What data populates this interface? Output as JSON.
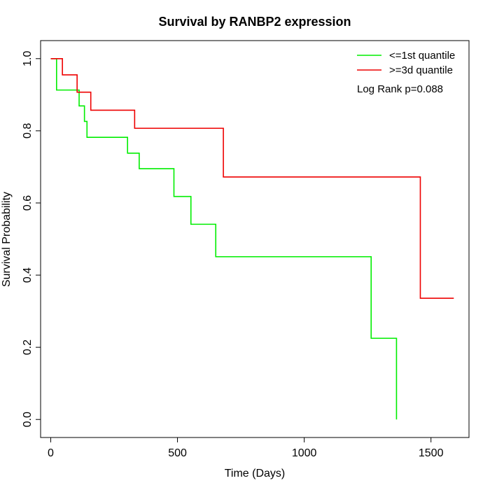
{
  "chart_data": {
    "type": "line",
    "title": "Survival by RANBP2 expression",
    "xlabel": "Time (Days)",
    "ylabel": "Survival Probability",
    "xlim": [
      -40,
      1650
    ],
    "ylim": [
      -0.05,
      1.05
    ],
    "xticks": [
      0,
      500,
      1000,
      1500
    ],
    "yticks": [
      0.0,
      0.2,
      0.4,
      0.6,
      0.8,
      1.0
    ],
    "xtick_labels": [
      "0",
      "500",
      "1000",
      "1500"
    ],
    "ytick_labels": [
      "0.0",
      "0.2",
      "0.4",
      "0.6",
      "0.8",
      "1.0"
    ],
    "grid": false,
    "legend_position": "top-right",
    "annotation": "Log Rank p=0.088",
    "series": [
      {
        "name": "<=1st quantile",
        "color": "#00ee00",
        "x": [
          0,
          23,
          23,
          100,
          112,
          133,
          138,
          143,
          303,
          349,
          486,
          553,
          651,
          1264,
          1364,
          1364
        ],
        "y": [
          1.0,
          1.0,
          0.913,
          0.913,
          0.869,
          0.826,
          0.826,
          0.782,
          0.738,
          0.695,
          0.618,
          0.541,
          0.451,
          0.225,
          0.0,
          0.0
        ]
      },
      {
        "name": ">=3d quantile",
        "color": "#ee0000",
        "x": [
          0,
          46,
          104,
          158,
          331,
          681,
          1458,
          1590
        ],
        "y": [
          1.0,
          0.955,
          0.907,
          0.857,
          0.807,
          0.672,
          0.336,
          0.336
        ]
      }
    ]
  }
}
